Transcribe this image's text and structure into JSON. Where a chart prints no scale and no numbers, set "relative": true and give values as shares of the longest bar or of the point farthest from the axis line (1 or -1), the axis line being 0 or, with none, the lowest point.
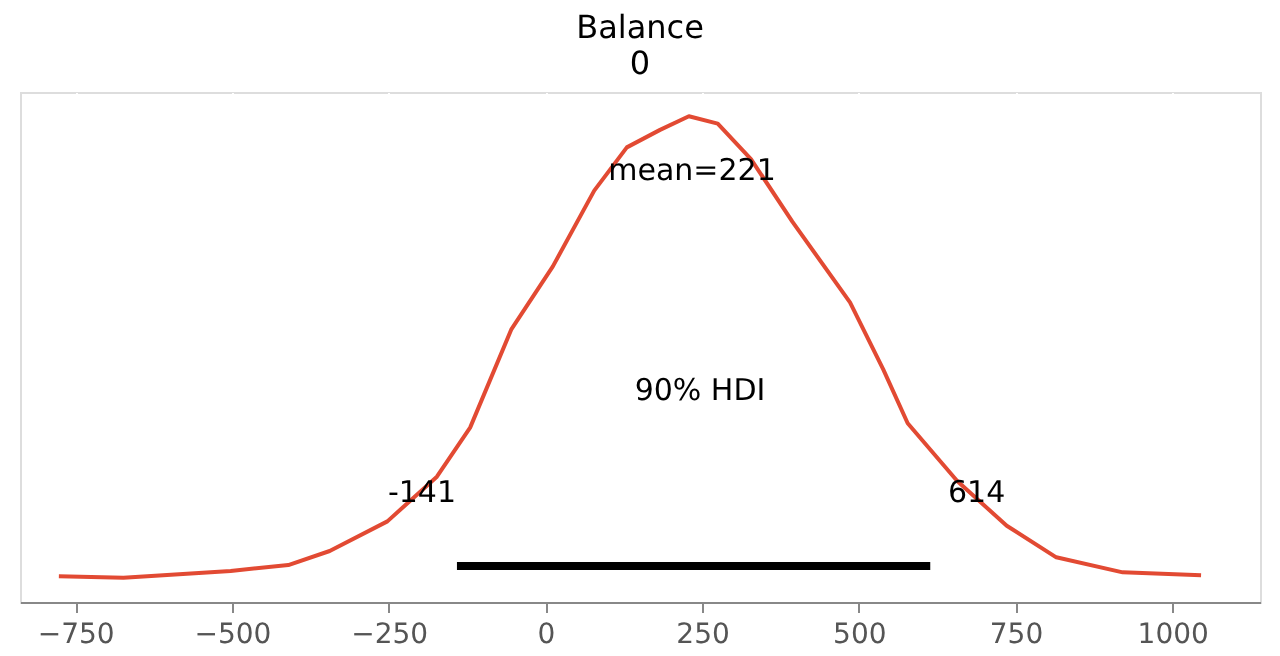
{
  "chart_data": {
    "type": "line",
    "title": "Balance",
    "subtitle": "0",
    "relative": true,
    "grid": "x",
    "marker": "none",
    "line_style": "solid",
    "xlim": [
      -838,
      1140
    ],
    "xticks": [
      -750,
      -500,
      -250,
      0,
      250,
      500,
      750,
      {
        "value": 1000,
        "label": "1000"
      }
    ],
    "series": [
      {
        "color": "#e24a33",
        "x": [
          -776,
          -673,
          -502,
          -410,
          -344,
          -252,
          -173,
          -120,
          -54,
          12,
          78,
          130,
          183,
          229,
          275,
          328,
          394,
          486,
          539,
          578,
          657,
          736,
          815,
          921,
          1046
        ],
        "values": [
          0.053,
          0.05,
          0.064,
          0.076,
          0.105,
          0.166,
          0.258,
          0.359,
          0.562,
          0.691,
          0.847,
          0.936,
          0.972,
          1.0,
          0.985,
          0.912,
          0.783,
          0.617,
          0.479,
          0.368,
          0.249,
          0.157,
          0.092,
          0.061,
          0.055
        ]
      },
      {
        "color": "#000000",
        "x": [
          -141,
          614
        ],
        "values": [
          0.074,
          0.074
        ]
      }
    ],
    "annotations": [
      "mean=221",
      "90% HDI",
      "-141",
      "614"
    ]
  }
}
